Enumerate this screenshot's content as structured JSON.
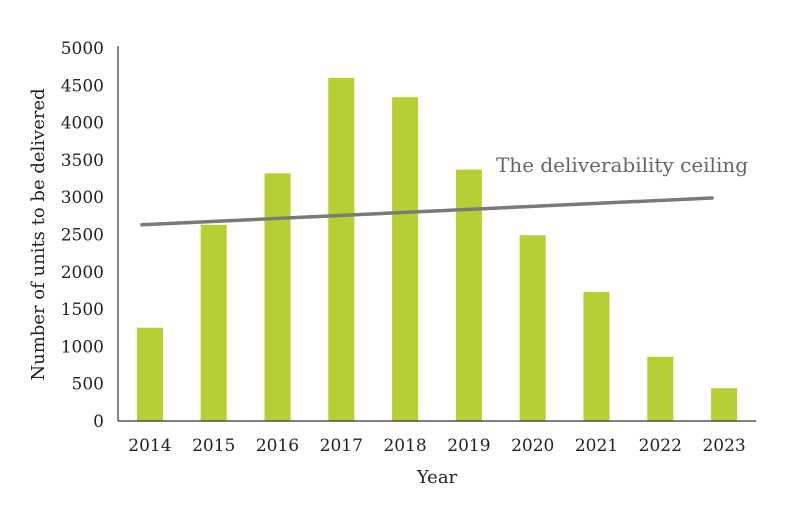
{
  "chart_data": {
    "type": "bar",
    "categories": [
      "2014",
      "2015",
      "2016",
      "2017",
      "2018",
      "2019",
      "2020",
      "2021",
      "2022",
      "2023"
    ],
    "values": [
      1250,
      2630,
      3320,
      4600,
      4340,
      3370,
      2490,
      1730,
      860,
      440
    ],
    "xlabel": "Year",
    "ylabel": "Number of units to be delivered",
    "ylim": [
      0,
      5000
    ],
    "yticks": [
      "0",
      "500",
      "1000",
      "1500",
      "2000",
      "2500",
      "3000",
      "3500",
      "4000",
      "4500",
      "5000"
    ],
    "grid": false,
    "legend": "none",
    "bar_color": "#b5cf34",
    "trend_line": {
      "label": "The deliverability ceiling",
      "start": {
        "x": "2014",
        "y": 2630
      },
      "end": {
        "x": "2023",
        "y": 2990
      },
      "color": "#7a7a7a"
    }
  }
}
